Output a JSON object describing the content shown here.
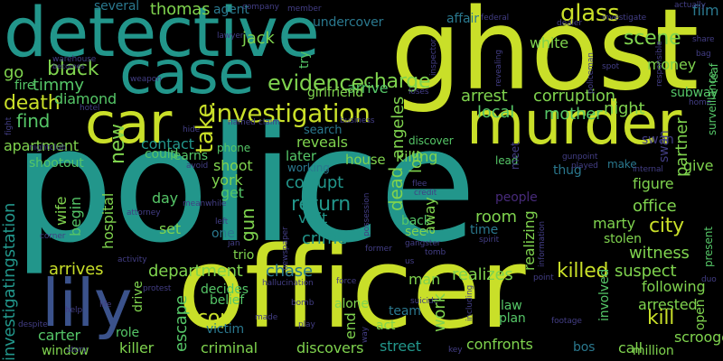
{
  "words": {
    "police": "police",
    "officer": "officer",
    "ghost": "ghost",
    "detective": "detective",
    "case": "case",
    "murder": "murder",
    "car": "car",
    "lily": "lily",
    "investigation": "investigation",
    "evidence": "evidence",
    "glass": "glass",
    "scene": "scene",
    "charge": "charge",
    "thomas": "thomas",
    "agent": "agent",
    "undercover": "undercover",
    "jack": "jack",
    "black": "black",
    "timmy": "timmy",
    "death": "death",
    "find": "find",
    "apartment": "apartment",
    "shootout": "shootout",
    "diamond": "diamond",
    "fire": "fire",
    "go": "go",
    "several": "several",
    "arrest": "arrest",
    "corruption": "corruption",
    "arrive": "arrive",
    "local": "local",
    "mother": "mother",
    "night": "night",
    "money": "money",
    "white": "white",
    "affair": "affair",
    "subway": "subway",
    "film": "film",
    "return": "return",
    "take": "take",
    "contact": "contact",
    "could": "could",
    "learns": "learns",
    "phone": "phone",
    "search": "search",
    "reveals": "reveals",
    "later": "later",
    "working": "working",
    "house": "house",
    "corrupt": "corrupt",
    "killing": "killing",
    "los": "los",
    "angeles": "angeles",
    "shoot": "shoot",
    "york": "york",
    "get": "get",
    "day": "day",
    "set": "set",
    "one": "one",
    "visit": "visit",
    "crime": "crime",
    "see": "see",
    "back": "back",
    "room": "room",
    "dead": "dead",
    "away": "away",
    "people": "people",
    "time": "time",
    "marty": "marty",
    "city": "city",
    "office": "office",
    "figure": "figure",
    "give": "give",
    "thug": "thug",
    "swan": "swan",
    "partner": "partner",
    "arrives": "arrives",
    "department": "department",
    "chase": "chase",
    "killed": "killed",
    "suspect": "suspect",
    "witness": "witness",
    "cop": "cop",
    "escape": "escape",
    "killer": "killer",
    "carter": "carter",
    "role": "role",
    "criminal": "criminal",
    "discovers": "discovers",
    "street": "street",
    "confronts": "confronts",
    "call": "call",
    "million": "million",
    "scrooge": "scrooge",
    "arrested": "arrested",
    "kill": "kill",
    "following": "following",
    "man": "man",
    "realizes": "realizes",
    "work": "work",
    "team": "team",
    "law": "law",
    "plan": "plan",
    "act": "act",
    "end": "end",
    "alone": "alone",
    "belief": "belief",
    "decides": "decides",
    "victim": "victim",
    "window": "window",
    "gun": "gun",
    "hospital": "hospital",
    "begin": "begin",
    "wife": "wife",
    "new": "new",
    "investigatingstation": "investigatingstation",
    "trio": "trio",
    "realizing": "realizing",
    "girlfriend": "girlfriend",
    "try": "try",
    "open": "open",
    "stolen": "stolen",
    "present": "present",
    "bos": "bos",
    "involved": "involved",
    "discover": "discover",
    "lead": "lead",
    "make": "make",
    "leaf": "leaf",
    "surveillance": "surveillance",
    "home": "home",
    "bag": "bag",
    "share": "share",
    "actually": "actually",
    "fall": "fall",
    "company": "company",
    "member": "member",
    "lawyer": "lawyer",
    "warehouse": "warehouse",
    "becomes": "becomes",
    "hotel": "hotel",
    "weapon": "weapon",
    "fight": "fight",
    "hide": "hide",
    "nightclub": "nightclub",
    "named": "named",
    "claim": "claim",
    "business": "business",
    "avoid": "avoid",
    "meanwhile": "meanwhile",
    "left": "left",
    "attorney": "attorney",
    "jan": "jan",
    "newspaper": "newspaper",
    "possession": "possession",
    "gangster": "gangster",
    "tomb": "tomb",
    "spirit": "spirit",
    "information": "information",
    "point": "point",
    "gunpoint": "gunpoint",
    "played": "played",
    "internal": "internal",
    "credit": "credit",
    "flee": "flee",
    "former": "former",
    "us": "us",
    "hallucination": "hallucination",
    "force": "force",
    "suicide": "suicide",
    "bomb": "bomb",
    "made": "made",
    "play": "play",
    "way": "way",
    "including": "including",
    "footage": "footage",
    "key": "key",
    "story": "story",
    "help": "help",
    "life": "life",
    "despite": "despite",
    "activity": "activity",
    "protest": "protest",
    "drive": "drive",
    "corner": "corner",
    "loses": "loses",
    "federal": "federal",
    "inspector": "inspector",
    "revealing": "revealing",
    "dealer": "dealer",
    "policeman": "policeman",
    "investigate": "investigate",
    "spot": "spot",
    "responsible": "responsible",
    "duo": "duo",
    "meet": "meet"
  }
}
